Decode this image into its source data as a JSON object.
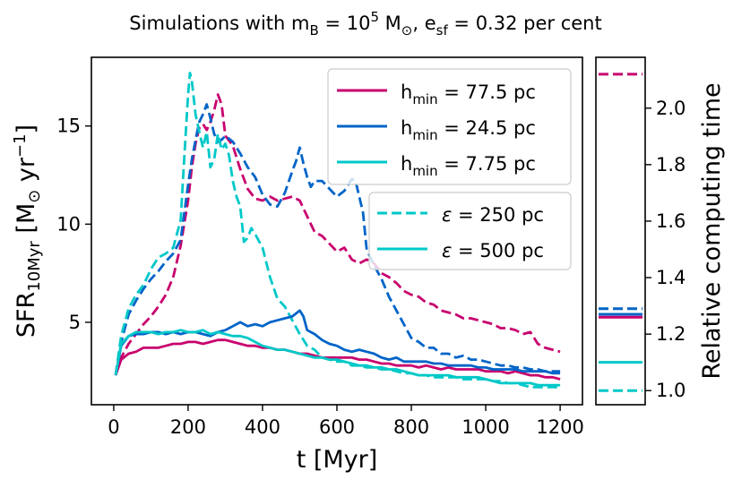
{
  "chart_data": [
    {
      "type": "line",
      "title": {
        "main": "Simulations with m",
        "sub_B": "B",
        "eq1": " = 10",
        "sup5": "5",
        "msun": " M",
        "sun_sub": "⊙",
        "esf": ", e",
        "sub_sf": "sf",
        "tail": " = 0.32 per cent"
      },
      "xlabel": "t [Myr]",
      "ylabel": {
        "main": "SFR",
        "sub": "10Myr",
        "unit_open": " [M",
        "unit_sun": "⊙",
        "unit_mid": " yr",
        "unit_sup": "−1",
        "unit_close": "]"
      },
      "xlim": [
        -60,
        1260
      ],
      "ylim": [
        0.8,
        18.5
      ],
      "xticks": [
        0,
        200,
        400,
        600,
        800,
        1000,
        1200
      ],
      "yticks": [
        5,
        10,
        15
      ],
      "xtick_labels": [
        "0",
        "200",
        "400",
        "600",
        "800",
        "1000",
        "1200"
      ],
      "ytick_labels": [
        "5",
        "10",
        "15"
      ],
      "series": [
        {
          "name": "magenta dashed",
          "color": "#c8006e",
          "dash": true,
          "x": [
            5,
            20,
            40,
            60,
            80,
            100,
            120,
            140,
            160,
            180,
            200,
            210,
            220,
            230,
            240,
            250,
            260,
            270,
            280,
            290,
            300,
            320,
            340,
            360,
            380,
            400,
            420,
            440,
            460,
            480,
            500,
            520,
            540,
            560,
            580,
            600,
            620,
            640,
            660,
            680,
            700,
            720,
            740,
            760,
            780,
            800,
            820,
            840,
            860,
            880,
            900,
            920,
            940,
            960,
            980,
            1000,
            1020,
            1040,
            1060,
            1080,
            1100,
            1120,
            1140,
            1160,
            1180,
            1200
          ],
          "y": [
            2.3,
            3.2,
            3.9,
            4.4,
            4.9,
            5.3,
            5.8,
            6.4,
            7.3,
            8.9,
            11.2,
            12.9,
            14.1,
            14.9,
            15.1,
            14.8,
            15.2,
            15.8,
            16.6,
            16.1,
            14.5,
            14.0,
            12.8,
            11.8,
            11.3,
            11.2,
            11.4,
            11.2,
            11.3,
            11.4,
            11.2,
            10.4,
            9.6,
            9.4,
            9.0,
            8.6,
            8.8,
            8.2,
            8.0,
            8.2,
            8.0,
            7.5,
            7.3,
            7.0,
            6.6,
            6.4,
            6.3,
            6.0,
            5.9,
            5.6,
            5.5,
            5.4,
            5.2,
            5.2,
            5.1,
            5.0,
            4.9,
            4.7,
            4.7,
            4.6,
            4.4,
            4.5,
            3.9,
            3.7,
            3.6,
            3.5
          ]
        },
        {
          "name": "blue dashed",
          "color": "#0064c8",
          "dash": true,
          "x": [
            5,
            20,
            40,
            60,
            80,
            100,
            120,
            140,
            160,
            180,
            200,
            210,
            220,
            230,
            240,
            250,
            260,
            270,
            280,
            290,
            300,
            320,
            340,
            360,
            380,
            400,
            420,
            440,
            460,
            480,
            490,
            500,
            510,
            520,
            530,
            540,
            560,
            580,
            600,
            620,
            640,
            650,
            660,
            670,
            680,
            700,
            720,
            740,
            760,
            780,
            800,
            820,
            840,
            860,
            880,
            900,
            920,
            940,
            960,
            980,
            1000,
            1020,
            1040,
            1060,
            1080,
            1100,
            1120,
            1140,
            1160,
            1180,
            1200
          ],
          "y": [
            2.3,
            4.0,
            5.4,
            6.1,
            6.7,
            7.2,
            7.6,
            8.1,
            8.5,
            9.2,
            12.0,
            13.3,
            14.3,
            15.2,
            15.6,
            16.1,
            15.4,
            14.6,
            14.2,
            14.3,
            14.5,
            14.2,
            13.6,
            12.9,
            12.4,
            11.5,
            11.0,
            10.9,
            11.6,
            12.7,
            13.2,
            13.9,
            13.1,
            12.4,
            11.9,
            12.2,
            12.2,
            11.8,
            11.4,
            11.7,
            12.3,
            12.2,
            11.4,
            10.6,
            8.7,
            7.9,
            7.2,
            6.3,
            5.6,
            4.9,
            4.2,
            4.0,
            3.7,
            3.7,
            3.4,
            3.4,
            3.2,
            3.3,
            3.1,
            3.1,
            3.0,
            2.9,
            2.8,
            2.8,
            2.7,
            2.7,
            2.6,
            2.6,
            2.5,
            2.5,
            2.5
          ]
        },
        {
          "name": "cyan dashed",
          "color": "#00c8c8",
          "dash": true,
          "x": [
            5,
            20,
            40,
            60,
            80,
            100,
            120,
            140,
            160,
            180,
            190,
            200,
            205,
            210,
            220,
            230,
            240,
            250,
            260,
            270,
            280,
            290,
            300,
            310,
            320,
            330,
            340,
            350,
            360,
            370,
            380,
            400,
            420,
            440,
            460,
            480,
            500,
            520,
            540,
            560,
            580,
            600,
            620,
            640,
            660,
            680,
            700,
            720,
            740,
            760,
            780,
            800,
            820,
            840,
            860,
            880,
            900,
            920,
            940,
            960,
            980,
            1000,
            1020,
            1040,
            1060,
            1080,
            1100,
            1120,
            1140,
            1160,
            1180,
            1200
          ],
          "y": [
            2.3,
            4.3,
            5.7,
            6.4,
            6.9,
            7.7,
            8.3,
            8.5,
            8.8,
            10.2,
            13.5,
            16.6,
            17.7,
            17.3,
            15.6,
            14.7,
            13.9,
            14.7,
            12.9,
            13.3,
            14.6,
            13.8,
            14.1,
            13.5,
            12.2,
            11.4,
            10.9,
            9.1,
            9.3,
            9.8,
            9.5,
            8.8,
            7.3,
            6.2,
            5.8,
            5.1,
            4.4,
            3.8,
            3.6,
            3.2,
            3.1,
            3.0,
            3.0,
            2.8,
            2.8,
            2.7,
            2.7,
            2.6,
            2.6,
            2.5,
            2.4,
            2.4,
            2.3,
            2.3,
            2.2,
            2.2,
            2.2,
            2.2,
            2.1,
            2.1,
            2.1,
            2.1,
            2.0,
            2.0,
            1.9,
            1.9,
            1.8,
            1.7,
            1.7,
            1.7,
            1.7,
            1.7
          ]
        },
        {
          "name": "magenta solid",
          "color": "#c8006e",
          "dash": false,
          "x": [
            5,
            20,
            40,
            60,
            80,
            100,
            120,
            140,
            160,
            180,
            200,
            220,
            240,
            260,
            280,
            300,
            320,
            340,
            360,
            380,
            400,
            420,
            440,
            460,
            480,
            500,
            520,
            540,
            560,
            580,
            600,
            620,
            640,
            660,
            680,
            700,
            720,
            740,
            760,
            780,
            800,
            820,
            840,
            860,
            880,
            900,
            920,
            940,
            960,
            980,
            1000,
            1020,
            1040,
            1060,
            1080,
            1100,
            1120,
            1140,
            1160,
            1180,
            1200
          ],
          "y": [
            2.3,
            3.1,
            3.4,
            3.5,
            3.7,
            3.7,
            3.7,
            3.8,
            3.9,
            3.9,
            4.0,
            4.0,
            3.9,
            4.0,
            4.1,
            4.1,
            4.0,
            3.9,
            3.8,
            3.8,
            3.7,
            3.7,
            3.6,
            3.6,
            3.5,
            3.4,
            3.4,
            3.3,
            3.2,
            3.2,
            3.2,
            3.2,
            3.2,
            3.1,
            3.1,
            3.0,
            2.9,
            2.9,
            2.8,
            2.8,
            2.8,
            2.7,
            2.8,
            2.7,
            2.6,
            2.7,
            2.6,
            2.6,
            2.6,
            2.6,
            2.5,
            2.5,
            2.5,
            2.4,
            2.5,
            2.4,
            2.3,
            2.3,
            2.2,
            2.2,
            2.1
          ]
        },
        {
          "name": "blue solid",
          "color": "#0064c8",
          "dash": false,
          "x": [
            5,
            20,
            40,
            60,
            80,
            100,
            120,
            140,
            160,
            180,
            200,
            220,
            240,
            260,
            280,
            300,
            320,
            340,
            360,
            380,
            400,
            420,
            440,
            460,
            480,
            500,
            510,
            520,
            540,
            560,
            580,
            600,
            620,
            640,
            660,
            680,
            700,
            720,
            740,
            760,
            780,
            800,
            820,
            840,
            860,
            880,
            900,
            920,
            940,
            960,
            980,
            1000,
            1020,
            1040,
            1060,
            1080,
            1100,
            1120,
            1140,
            1160,
            1180,
            1200
          ],
          "y": [
            2.3,
            3.8,
            4.3,
            4.4,
            4.4,
            4.5,
            4.5,
            4.4,
            4.5,
            4.4,
            4.5,
            4.5,
            4.4,
            4.3,
            4.5,
            4.6,
            4.8,
            5.0,
            4.8,
            4.9,
            4.8,
            5.0,
            5.1,
            5.2,
            5.3,
            5.6,
            5.3,
            4.6,
            4.4,
            4.1,
            3.9,
            3.8,
            3.6,
            3.5,
            3.6,
            3.5,
            3.4,
            3.2,
            3.1,
            3.2,
            3.0,
            3.0,
            3.0,
            3.0,
            2.9,
            2.9,
            2.8,
            2.8,
            2.8,
            2.8,
            2.7,
            2.7,
            2.6,
            2.6,
            2.6,
            2.6,
            2.5,
            2.5,
            2.5,
            2.5,
            2.4,
            2.4
          ]
        },
        {
          "name": "cyan solid",
          "color": "#00c8c8",
          "dash": false,
          "x": [
            5,
            20,
            40,
            60,
            80,
            100,
            120,
            140,
            160,
            180,
            200,
            220,
            240,
            260,
            280,
            300,
            320,
            340,
            360,
            380,
            400,
            420,
            440,
            460,
            480,
            500,
            520,
            540,
            560,
            580,
            600,
            620,
            640,
            660,
            680,
            700,
            720,
            740,
            760,
            780,
            800,
            820,
            840,
            860,
            880,
            900,
            920,
            940,
            960,
            980,
            1000,
            1020,
            1040,
            1060,
            1080,
            1100,
            1120,
            1140,
            1160,
            1180,
            1200
          ],
          "y": [
            2.3,
            3.9,
            4.3,
            4.5,
            4.5,
            4.5,
            4.4,
            4.5,
            4.5,
            4.6,
            4.5,
            4.5,
            4.6,
            4.4,
            4.5,
            4.4,
            4.3,
            4.3,
            4.2,
            4.0,
            3.8,
            3.7,
            3.6,
            3.6,
            3.5,
            3.4,
            3.3,
            3.2,
            3.2,
            3.1,
            3.1,
            3.0,
            2.9,
            2.8,
            2.8,
            2.7,
            2.7,
            2.6,
            2.6,
            2.5,
            2.4,
            2.3,
            2.3,
            2.3,
            2.3,
            2.3,
            2.2,
            2.2,
            2.2,
            2.2,
            2.1,
            2.0,
            1.9,
            1.9,
            1.9,
            1.9,
            1.9,
            1.8,
            1.8,
            1.8,
            1.8
          ]
        }
      ],
      "legend_resolution": {
        "location": "top-right",
        "entries": [
          {
            "main": "h",
            "sub": "min",
            "value": " = 77.5 pc",
            "color": "#c8006e"
          },
          {
            "main": "h",
            "sub": "min",
            "value": " = 24.5 pc",
            "color": "#0064c8"
          },
          {
            "main": "h",
            "sub": "min",
            "value": " = 7.75 pc",
            "color": "#00c8c8"
          }
        ]
      },
      "legend_softening": {
        "location": "center-right",
        "entries": [
          {
            "symbol": "ε",
            "value": " = 250 pc",
            "color": "#00c8c8",
            "dash": true
          },
          {
            "symbol": "ε",
            "value": " = 500 pc",
            "color": "#00c8c8",
            "dash": false
          }
        ]
      }
    },
    {
      "type": "line",
      "ylabel": "Relative computing time",
      "ylim": [
        0.95,
        2.18
      ],
      "yticks": [
        1.0,
        1.2,
        1.4,
        1.6,
        1.8,
        2.0
      ],
      "ytick_labels": [
        "1.0",
        "1.2",
        "1.4",
        "1.6",
        "1.8",
        "2.0"
      ],
      "markers": [
        {
          "value": 2.12,
          "color": "#c8006e",
          "dash": true
        },
        {
          "value": 1.29,
          "color": "#0064c8",
          "dash": true
        },
        {
          "value": 1.27,
          "color": "#0064c8",
          "dash": false
        },
        {
          "value": 1.26,
          "color": "#c8006e",
          "dash": false
        },
        {
          "value": 1.1,
          "color": "#00c8c8",
          "dash": false
        },
        {
          "value": 1.0,
          "color": "#00c8c8",
          "dash": true
        }
      ]
    }
  ]
}
